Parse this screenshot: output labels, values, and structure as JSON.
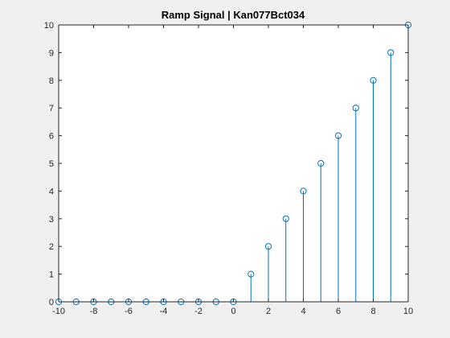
{
  "chart_data": {
    "type": "stem",
    "title": "Ramp Signal | Kan077Bct034",
    "xlabel": "",
    "ylabel": "",
    "xlim": [
      -10,
      10
    ],
    "ylim": [
      0,
      10
    ],
    "x": [
      -10,
      -9,
      -8,
      -7,
      -6,
      -5,
      -4,
      -3,
      -2,
      -1,
      0,
      1,
      2,
      3,
      4,
      5,
      6,
      7,
      8,
      9,
      10
    ],
    "values": [
      0,
      0,
      0,
      0,
      0,
      0,
      0,
      0,
      0,
      0,
      0,
      1,
      2,
      3,
      4,
      5,
      6,
      7,
      8,
      9,
      10
    ],
    "xticks": [
      "-10",
      "-8",
      "-6",
      "-4",
      "-2",
      "0",
      "2",
      "4",
      "6",
      "8",
      "10"
    ],
    "yticks": [
      "0",
      "1",
      "2",
      "3",
      "4",
      "5",
      "6",
      "7",
      "8",
      "9",
      "10"
    ],
    "grid": false,
    "series_color": "#0072BD",
    "marker": "circle"
  }
}
